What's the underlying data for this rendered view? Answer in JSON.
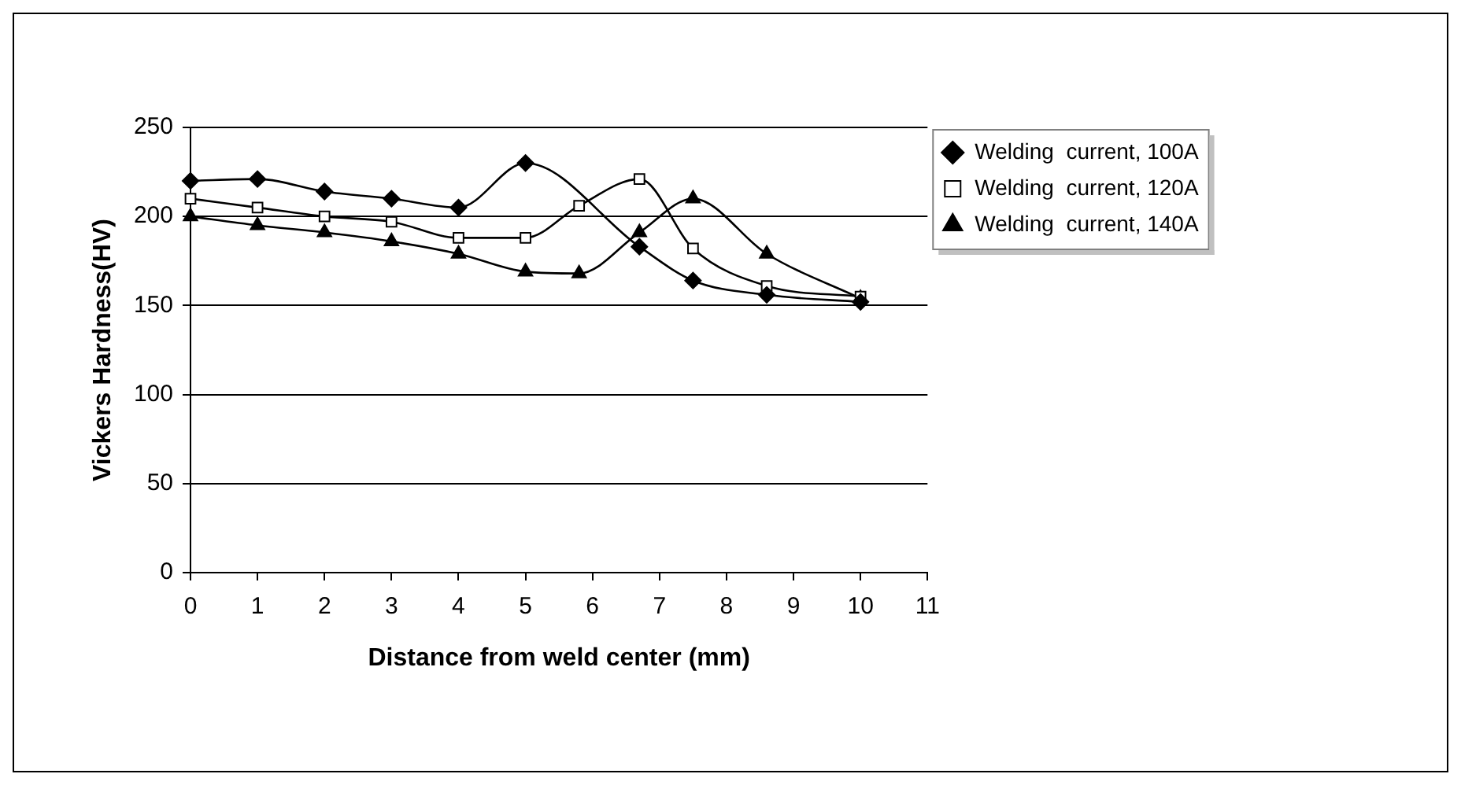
{
  "chart_data": {
    "type": "line",
    "xlabel": "Distance from weld center (mm)",
    "ylabel": "Vickers Hardness(HV)",
    "x": [
      0,
      1,
      2,
      3,
      4,
      5,
      5.8,
      6.7,
      7.5,
      8.6,
      10
    ],
    "series": [
      {
        "name": "Welding  current, 100A",
        "color": "#000000",
        "marker": "diamond",
        "values": [
          220,
          221,
          214,
          210,
          205,
          230,
          null,
          183,
          164,
          156,
          152
        ]
      },
      {
        "name": "Welding  current, 120A",
        "color": "#000000",
        "marker": "square",
        "values": [
          210,
          205,
          200,
          197,
          188,
          188,
          206,
          221,
          182,
          161,
          155
        ]
      },
      {
        "name": "Welding  current, 140A",
        "color": "#000000",
        "marker": "triangle",
        "values": [
          200,
          195,
          191,
          186,
          179,
          169,
          168,
          191,
          210,
          179,
          154
        ]
      }
    ],
    "xlim": [
      0,
      11
    ],
    "xticks": [
      0,
      1,
      2,
      3,
      4,
      5,
      6,
      7,
      8,
      9,
      10,
      11
    ],
    "ylim": [
      0,
      250
    ],
    "yticks": [
      0,
      50,
      100,
      150,
      200,
      250
    ],
    "grid": "y",
    "legend": "top right"
  }
}
